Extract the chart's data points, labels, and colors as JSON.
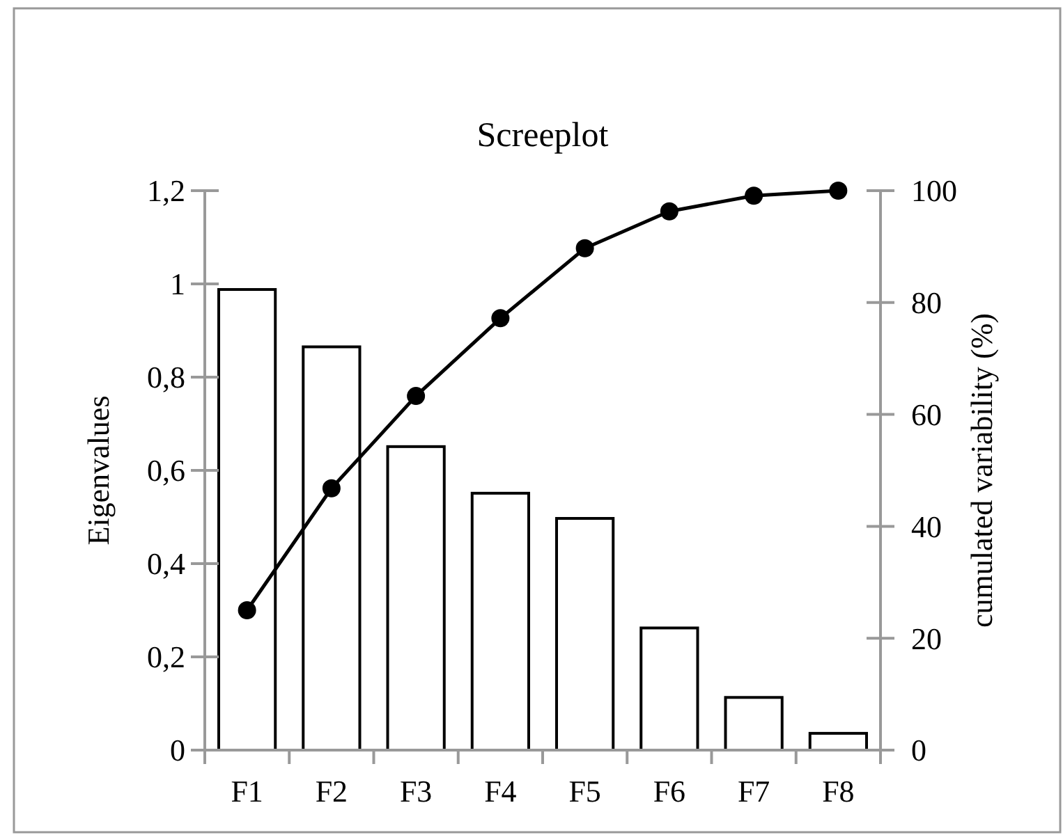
{
  "chart_data": {
    "type": "bar",
    "title": "Screeplot",
    "ylabel": "Eigenvalues",
    "y2label": "cumulated variability  (%)",
    "categories": [
      "F1",
      "F2",
      "F3",
      "F4",
      "F5",
      "F6",
      "F7",
      "F8"
    ],
    "series": [
      {
        "color": "#ffffff",
        "values": [
          0.988,
          0.865,
          0.651,
          0.551,
          0.497,
          0.262,
          0.113,
          0.036
        ]
      },
      {
        "type": "line",
        "axis": "y2",
        "color": "#000000",
        "marker": "circle",
        "values": [
          25.0,
          46.8,
          63.3,
          77.2,
          89.7,
          96.3,
          99.1,
          100
        ]
      }
    ],
    "ylim": [
      0,
      1.2
    ],
    "yticks": [
      0,
      {
        "value": 0.2,
        "label": "0,2"
      },
      {
        "value": 0.4,
        "label": "0,4"
      },
      {
        "value": 0.6,
        "label": "0,6"
      },
      {
        "value": 0.8,
        "label": "0,8"
      },
      1,
      {
        "value": 1.2,
        "label": "1,2"
      }
    ],
    "y2lim": [
      0,
      100
    ],
    "y2ticks": [
      0,
      20,
      40,
      60,
      80,
      100
    ]
  }
}
